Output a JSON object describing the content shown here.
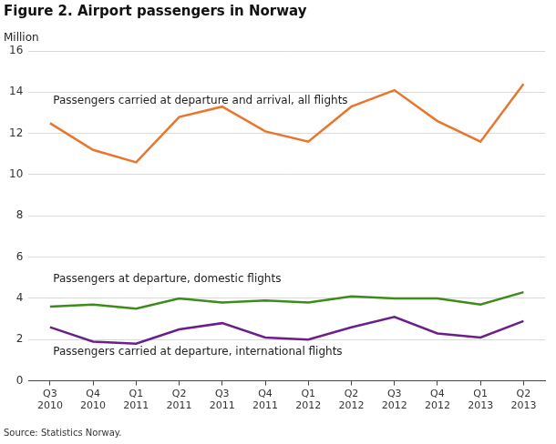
{
  "chart_data": {
    "type": "line",
    "title": "Figure 2. Airport passengers in Norway",
    "ylabel": "Million",
    "source": "Source: Statistics Norway.",
    "categories": [
      [
        "Q3",
        "2010"
      ],
      [
        "Q4",
        "2010"
      ],
      [
        "Q1",
        "2011"
      ],
      [
        "Q2",
        "2011"
      ],
      [
        "Q3",
        "2011"
      ],
      [
        "Q4",
        "2011"
      ],
      [
        "Q1",
        "2012"
      ],
      [
        "Q2",
        "2012"
      ],
      [
        "Q3",
        "2012"
      ],
      [
        "Q4",
        "2012"
      ],
      [
        "Q1",
        "2013"
      ],
      [
        "Q2",
        "2013"
      ]
    ],
    "series": [
      {
        "name": "Passengers carried at departure and arrival, all flights",
        "color": "#e8762c",
        "values": [
          12.5,
          11.2,
          10.6,
          12.8,
          13.3,
          12.1,
          11.6,
          13.3,
          14.1,
          12.6,
          11.6,
          14.4
        ]
      },
      {
        "name": "Passengers at departure, domestic flights",
        "color": "#3d8c1a",
        "values": [
          3.6,
          3.7,
          3.5,
          4.0,
          3.8,
          3.9,
          3.8,
          4.1,
          4.0,
          4.0,
          3.7,
          4.3
        ]
      },
      {
        "name": "Passengers carried at departure, international flights",
        "color": "#6b1f8a",
        "values": [
          2.6,
          1.9,
          1.8,
          2.5,
          2.8,
          2.1,
          2.0,
          2.6,
          3.1,
          2.3,
          2.1,
          2.9
        ]
      }
    ],
    "ylim": [
      0,
      16
    ],
    "yticks": [
      0,
      2,
      4,
      6,
      8,
      10,
      12,
      14,
      16
    ],
    "grid": true
  }
}
